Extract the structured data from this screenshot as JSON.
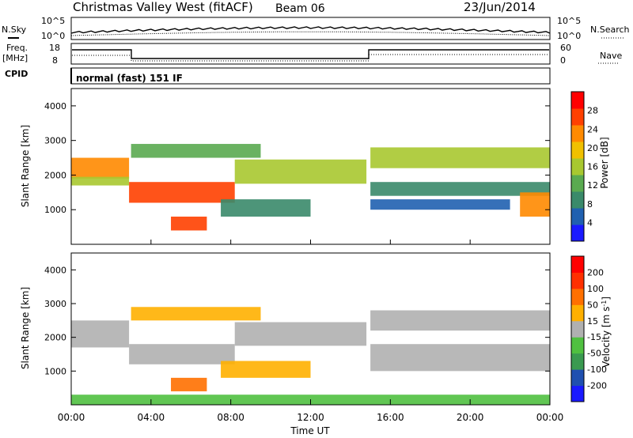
{
  "header": {
    "station": "Christmas Valley West (fitACF)",
    "beam": "Beam 06",
    "date": "23/Jun/2014"
  },
  "sky_panel": {
    "left_label": "N.Sky",
    "right_label": "N.Search",
    "left_ticks": [
      "10^5",
      "10^0"
    ],
    "right_ticks": [
      "10^5",
      "10^0"
    ]
  },
  "freq_panel": {
    "left_label_line1": "Freq.",
    "left_label_line2": "[MHz]",
    "right_label": "Nave",
    "left_ticks": [
      "18",
      "8"
    ],
    "right_ticks": [
      "60",
      "0"
    ]
  },
  "cpid": {
    "label": "CPID",
    "value": "normal (fast) 151 IF"
  },
  "colors": {
    "power_scale": [
      "#1a1aff",
      "#2060b0",
      "#3a8a6a",
      "#5aaa50",
      "#a8c830",
      "#f0c000",
      "#ff8a00",
      "#ff4000",
      "#ff0000"
    ],
    "velocity_scale": [
      "#1a1aff",
      "#2050b0",
      "#3a9a50",
      "#50c040",
      "#b0b0b0",
      "#ffb000",
      "#ff7000",
      "#ff3000",
      "#ff0000"
    ]
  },
  "chart_data": [
    {
      "type": "heatmap",
      "title": "",
      "xlabel": "Time UT",
      "ylabel": "Slant Range [km]",
      "xlim": [
        0,
        24
      ],
      "ylim": [
        0,
        4500
      ],
      "x_tick_labels": [
        "00:00",
        "04:00",
        "08:00",
        "12:00",
        "16:00",
        "20:00",
        "00:00"
      ],
      "y_ticks": [
        1000,
        2000,
        3000,
        4000
      ],
      "colorbar": {
        "label": "Power [dB]",
        "ticks": [
          "4",
          "8",
          "12",
          "16",
          "20",
          "24",
          "28"
        ],
        "range": [
          0,
          30
        ]
      },
      "bands": [
        {
          "t0": 0.0,
          "t1": 2.9,
          "r0": 1900,
          "r1": 2500,
          "value": 22
        },
        {
          "t0": 0.0,
          "t1": 2.9,
          "r0": 1700,
          "r1": 1950,
          "value": 14
        },
        {
          "t0": 2.9,
          "t1": 8.2,
          "r0": 1200,
          "r1": 1800,
          "value": 25
        },
        {
          "t0": 8.2,
          "t1": 14.8,
          "r0": 1750,
          "r1": 2450,
          "value": 16
        },
        {
          "t0": 3.0,
          "t1": 9.5,
          "r0": 2500,
          "r1": 2900,
          "value": 12
        },
        {
          "t0": 7.5,
          "t1": 12.0,
          "r0": 800,
          "r1": 1300,
          "value": 8
        },
        {
          "t0": 5.0,
          "t1": 6.8,
          "r0": 400,
          "r1": 800,
          "value": 24
        },
        {
          "t0": 15.0,
          "t1": 24.0,
          "r0": 2200,
          "r1": 2800,
          "value": 15
        },
        {
          "t0": 15.0,
          "t1": 24.0,
          "r0": 1400,
          "r1": 1800,
          "value": 9
        },
        {
          "t0": 15.0,
          "t1": 22.0,
          "r0": 1000,
          "r1": 1300,
          "value": 6
        },
        {
          "t0": 22.5,
          "t1": 24.0,
          "r0": 800,
          "r1": 1500,
          "value": 22
        }
      ]
    },
    {
      "type": "heatmap",
      "title": "",
      "xlabel": "Time UT",
      "ylabel": "Slant Range [km]",
      "xlim": [
        0,
        24
      ],
      "ylim": [
        0,
        4500
      ],
      "x_tick_labels": [
        "00:00",
        "04:00",
        "08:00",
        "12:00",
        "16:00",
        "20:00",
        "00:00"
      ],
      "y_ticks": [
        1000,
        2000,
        3000,
        4000
      ],
      "colorbar": {
        "label": "Velocity [m s^-1]",
        "ticks": [
          "200",
          "100",
          "50",
          "15",
          "-15",
          "-50",
          "-100",
          "-200"
        ],
        "range": [
          -250,
          250
        ]
      },
      "bands": [
        {
          "t0": 0.0,
          "t1": 2.9,
          "r0": 1700,
          "r1": 2500,
          "value": 0
        },
        {
          "t0": 2.9,
          "t1": 8.2,
          "r0": 1200,
          "r1": 1800,
          "value": 0
        },
        {
          "t0": 8.2,
          "t1": 14.8,
          "r0": 1750,
          "r1": 2450,
          "value": 0
        },
        {
          "t0": 3.0,
          "t1": 9.5,
          "r0": 2500,
          "r1": 2900,
          "value": -40
        },
        {
          "t0": 7.5,
          "t1": 12.0,
          "r0": 800,
          "r1": 1300,
          "value": -60
        },
        {
          "t0": 5.0,
          "t1": 6.8,
          "r0": 400,
          "r1": 800,
          "value": -110
        },
        {
          "t0": 15.0,
          "t1": 24.0,
          "r0": 2200,
          "r1": 2800,
          "value": 0
        },
        {
          "t0": 15.0,
          "t1": 24.0,
          "r0": 1000,
          "r1": 1800,
          "value": 5
        },
        {
          "t0": 0.0,
          "t1": 24.0,
          "r0": 0,
          "r1": 300,
          "value": 60
        }
      ]
    }
  ]
}
